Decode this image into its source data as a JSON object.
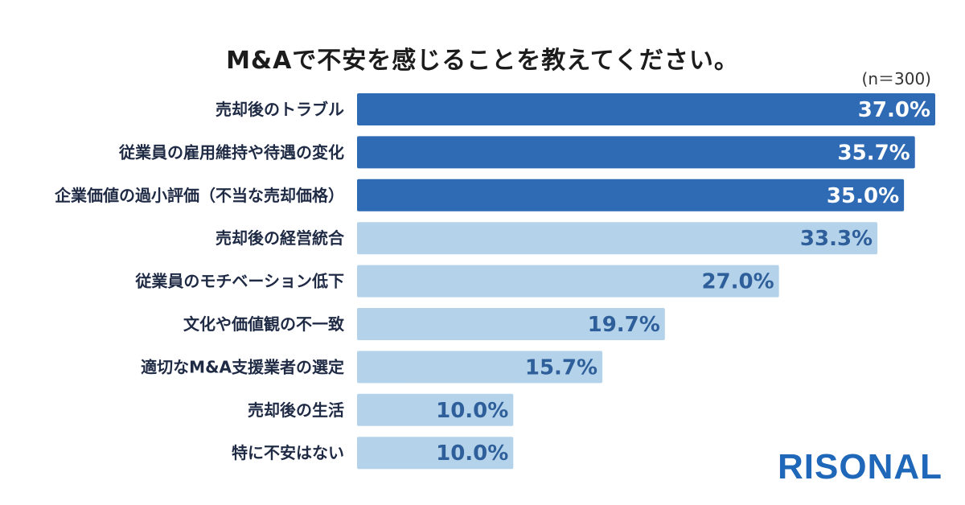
{
  "header": {
    "title": "M&Aで不安を感じることを教えてください。",
    "sample_note": "(n＝300)"
  },
  "brand": {
    "logo_text": "RISONAL"
  },
  "colors": {
    "highlight": "#2f6bb5",
    "normal": "#b4d3ea",
    "highlight_text": "#ffffff",
    "normal_text": "#2e5f9a"
  },
  "chart_data": {
    "type": "bar",
    "orientation": "horizontal",
    "categories": [
      "売却後のトラブル",
      "従業員の雇用維持や待遇の変化",
      "企業価値の過小評価（不当な売却価格）",
      "売却後の経営統合",
      "従業員のモチベーション低下",
      "文化や価値観の不一致",
      "適切なM&A支援業者の選定",
      "売却後の生活",
      "特に不安はない"
    ],
    "values": [
      37.0,
      35.7,
      35.0,
      33.3,
      27.0,
      19.7,
      15.7,
      10.0,
      10.0
    ],
    "value_labels": [
      "37.0%",
      "35.7%",
      "35.0%",
      "33.3%",
      "27.0%",
      "19.7%",
      "15.7%",
      "10.0%",
      "10.0%"
    ],
    "highlighted": [
      true,
      true,
      true,
      false,
      false,
      false,
      false,
      false,
      false
    ],
    "xlim": [
      0,
      37.0
    ],
    "unit": "%",
    "grid": false,
    "legend": "none"
  }
}
